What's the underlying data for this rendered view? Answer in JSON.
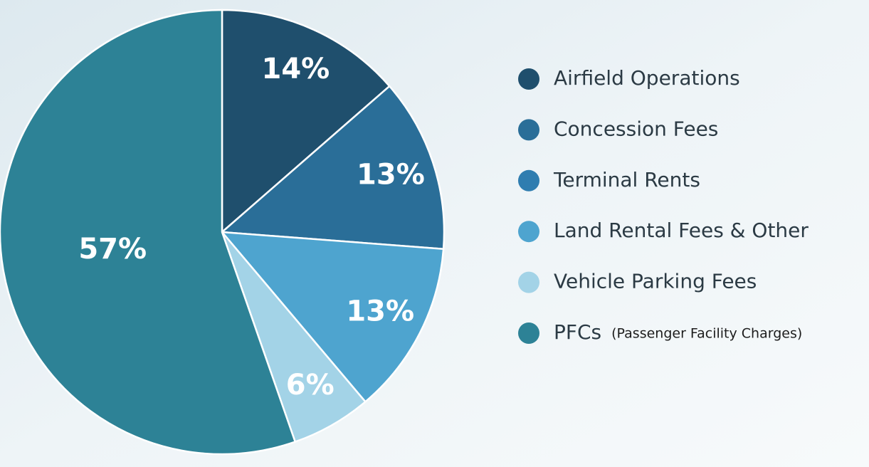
{
  "chart_data": {
    "type": "pie",
    "categories": [
      "Airfield Operations",
      "Concession Fees",
      "Terminal Rents",
      "Land Rental Fees & Other",
      "Vehicle Parking Fees",
      "PFCs"
    ],
    "values": [
      14,
      13,
      null,
      13,
      6,
      57
    ],
    "value_labels": [
      "14%",
      "13%",
      null,
      "13%",
      "6%",
      "57%"
    ],
    "colors": [
      "#1f4f6d",
      "#2a6e98",
      "#2f7db0",
      "#4ea4cf",
      "#a3d3e7",
      "#2d8296"
    ],
    "annotations": [
      {
        "text": "(Passenger Facility Charges)"
      }
    ]
  }
}
